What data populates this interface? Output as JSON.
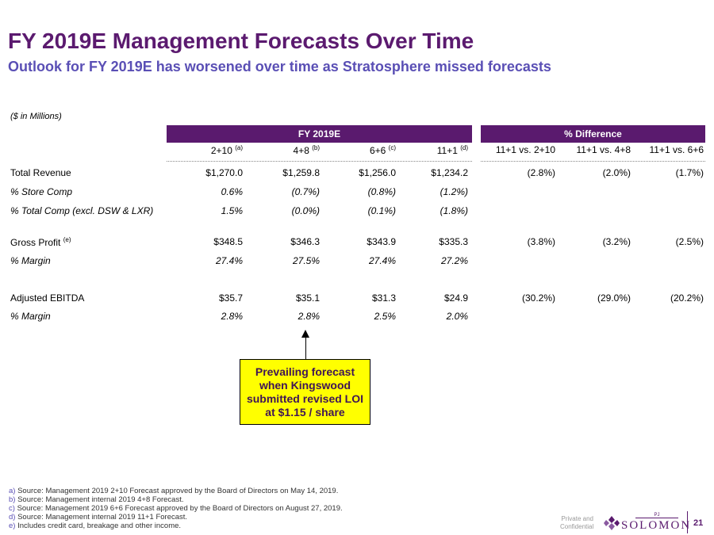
{
  "header": {
    "title": "FY 2019E Management Forecasts Over Time",
    "subtitle": "Outlook for FY 2019E has worsened over time as Stratosphere missed forecasts"
  },
  "units": "($ in Millions)",
  "groups": {
    "fy": "FY 2019E",
    "diff": "% Difference"
  },
  "columns": [
    {
      "label": "2+10",
      "note": "(a)"
    },
    {
      "label": "4+8",
      "note": "(b)"
    },
    {
      "label": "6+6",
      "note": "(c)"
    },
    {
      "label": "11+1",
      "note": "(d)"
    },
    {
      "label": "11+1 vs. 2+10",
      "note": ""
    },
    {
      "label": "11+1 vs. 4+8",
      "note": ""
    },
    {
      "label": "11+1 vs. 6+6",
      "note": ""
    }
  ],
  "rows": [
    {
      "label": "Total Revenue",
      "note": "",
      "italic": false,
      "values": [
        "$1,270.0",
        "$1,259.8",
        "$1,256.0",
        "$1,234.2",
        "(2.8%)",
        "(2.0%)",
        "(1.7%)"
      ]
    },
    {
      "label": "% Store Comp",
      "note": "",
      "italic": true,
      "values": [
        "0.6%",
        "(0.7%)",
        "(0.8%)",
        "(1.2%)",
        "",
        "",
        ""
      ]
    },
    {
      "label": "% Total Comp (excl. DSW & LXR)",
      "note": "",
      "italic": true,
      "values": [
        "1.5%",
        "(0.0%)",
        "(0.1%)",
        "(1.8%)",
        "",
        "",
        ""
      ]
    },
    {
      "label": "Gross Profit",
      "note": "(e)",
      "italic": false,
      "values": [
        "$348.5",
        "$346.3",
        "$343.9",
        "$335.3",
        "(3.8%)",
        "(3.2%)",
        "(2.5%)"
      ]
    },
    {
      "label": "% Margin",
      "note": "",
      "italic": true,
      "values": [
        "27.4%",
        "27.5%",
        "27.4%",
        "27.2%",
        "",
        "",
        ""
      ]
    },
    {
      "label": "Adjusted EBITDA",
      "note": "",
      "italic": false,
      "values": [
        "$35.7",
        "$35.1",
        "$31.3",
        "$24.9",
        "(30.2%)",
        "(29.0%)",
        "(20.2%)"
      ]
    },
    {
      "label": "% Margin",
      "note": "",
      "italic": true,
      "values": [
        "2.8%",
        "2.8%",
        "2.5%",
        "2.0%",
        "",
        "",
        ""
      ]
    }
  ],
  "callout": "Prevailing forecast when Kingswood submitted revised LOI at $1.15 / share",
  "footnotes": [
    {
      "key": "a)",
      "text": "Source: Management 2019 2+10 Forecast approved by the Board of Directors on May 14, 2019."
    },
    {
      "key": "b)",
      "text": "Source: Management internal 2019 4+8 Forecast."
    },
    {
      "key": "c)",
      "text": "Source: Management 2019 6+6 Forecast approved by the Board of Directors on August 27, 2019."
    },
    {
      "key": "d)",
      "text": "Source: Management internal 2019 11+1 Forecast."
    },
    {
      "key": "e)",
      "text": "Includes credit card, breakage and other income."
    }
  ],
  "footer": {
    "confidential": "Private and Confidential",
    "logo_small": "PJ",
    "logo_text": "SOLOMON",
    "page": "21"
  },
  "colors": {
    "brand_purple": "#5a1a6e",
    "subtitle_blue": "#5a4fb5",
    "callout_yellow": "#ffff00"
  }
}
